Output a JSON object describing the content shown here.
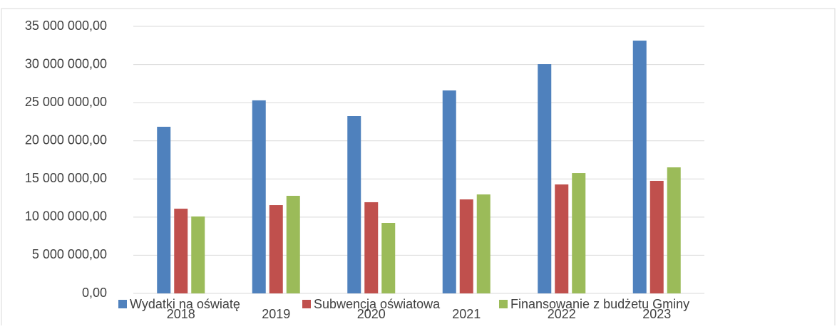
{
  "chart_data": {
    "type": "bar",
    "categories": [
      "2018",
      "2019",
      "2020",
      "2021",
      "2022",
      "2023"
    ],
    "series": [
      {
        "name": "Wydatki na oświatę",
        "color": "#4f81bd",
        "values": [
          21840000,
          25300000,
          23240000,
          26600000,
          30050000,
          33130000
        ]
      },
      {
        "name": "Subwencja oświatowa",
        "color": "#c0504d",
        "values": [
          11100000,
          11570000,
          11950000,
          12320000,
          14280000,
          14750000
        ]
      },
      {
        "name": "Finansowanie z budżetu Gminy",
        "color": "#9bbb59",
        "values": [
          10080000,
          12790000,
          9240000,
          12970000,
          15770000,
          16520000
        ]
      }
    ],
    "ylim": [
      0,
      35000000
    ],
    "yticks": [
      {
        "value": 0,
        "label": "0,00"
      },
      {
        "value": 5000000,
        "label": "5 000 000,00"
      },
      {
        "value": 10000000,
        "label": "10 000 000,00"
      },
      {
        "value": 15000000,
        "label": "15 000 000,00"
      },
      {
        "value": 20000000,
        "label": "20 000 000,00"
      },
      {
        "value": 25000000,
        "label": "25 000 000,00"
      },
      {
        "value": 30000000,
        "label": "30 000 000,00"
      },
      {
        "value": 35000000,
        "label": "35 000 000,00"
      }
    ],
    "grid": true,
    "legend": "bottom"
  }
}
